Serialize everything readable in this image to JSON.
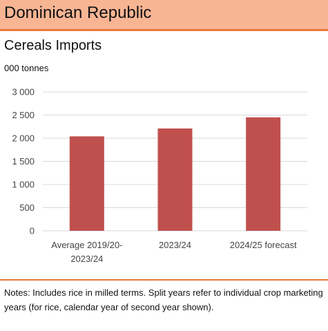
{
  "header": {
    "title": "Dominican Republic"
  },
  "chart_title": "Cereals Imports",
  "unit_label": "000 tonnes",
  "notes": "Notes: Includes rice in milled terms. Split years refer to individual crop marketing years (for rice, calendar year of second year shown).",
  "colors": {
    "bar": "#c0504d",
    "header_bg": "#f8b594",
    "accent": "#e87a3a",
    "grid": "#d9d9d9"
  },
  "chart_data": {
    "type": "bar",
    "categories": [
      [
        "Average 2019/20-",
        "2023/24"
      ],
      [
        "2023/24"
      ],
      [
        "2024/25 forecast"
      ]
    ],
    "values": [
      2040,
      2210,
      2450
    ],
    "ylim": [
      0,
      3000
    ],
    "yticks": [
      0,
      500,
      1000,
      1500,
      2000,
      2500,
      3000
    ],
    "ytick_labels": [
      "0",
      "500",
      "1 000",
      "1 500",
      "2 000",
      "2 500",
      "3 000"
    ],
    "grid": true
  }
}
